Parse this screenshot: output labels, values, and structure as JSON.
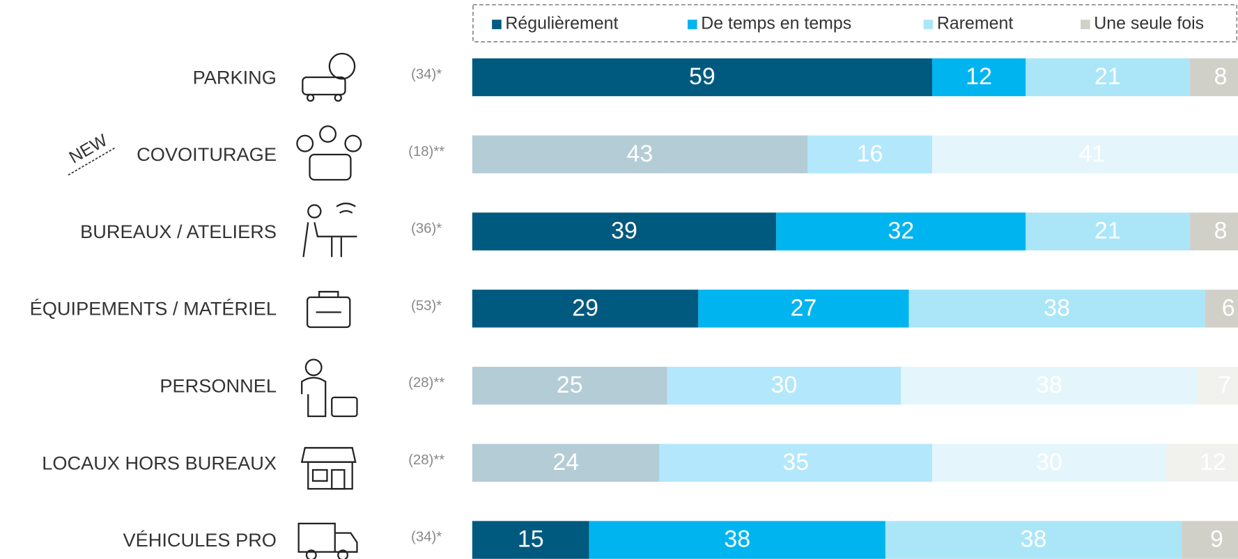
{
  "chart_data": {
    "type": "stacked-bar-horizontal",
    "annotation": "NEW",
    "categories": [
      "PARKING",
      "COVOITURAGE",
      "BUREAUX / ATELIERS",
      "ÉQUIPEMENTS / MATÉRIEL",
      "PERSONNEL",
      "LOCAUX HORS BUREAUX",
      "VÉHICULES PRO"
    ],
    "bases": [
      "(34)*",
      "(18)**",
      "(36)*",
      "(53)*",
      "(28)**",
      "(28)**",
      "(34)*"
    ],
    "muted": [
      false,
      true,
      false,
      false,
      true,
      true,
      false
    ],
    "xlim": [
      0,
      100
    ],
    "series": [
      {
        "name": "Régulièrement",
        "color": "#005a7f",
        "muted_color": "#b4ccd6",
        "values": [
          59,
          43,
          39,
          29,
          25,
          24,
          15
        ]
      },
      {
        "name": "De temps en temps",
        "color": "#00b4f0",
        "muted_color": "#b3e7fb",
        "values": [
          12,
          16,
          32,
          27,
          30,
          35,
          38
        ]
      },
      {
        "name": "Rarement",
        "color": "#aae6f8",
        "muted_color": "#e4f6fc",
        "values": [
          21,
          41,
          21,
          38,
          38,
          30,
          38
        ]
      },
      {
        "name": "Une seule fois",
        "color": "#d0d0c8",
        "muted_color": "#f1f1ee",
        "values": [
          8,
          null,
          8,
          6,
          7,
          12,
          9
        ]
      }
    ]
  }
}
